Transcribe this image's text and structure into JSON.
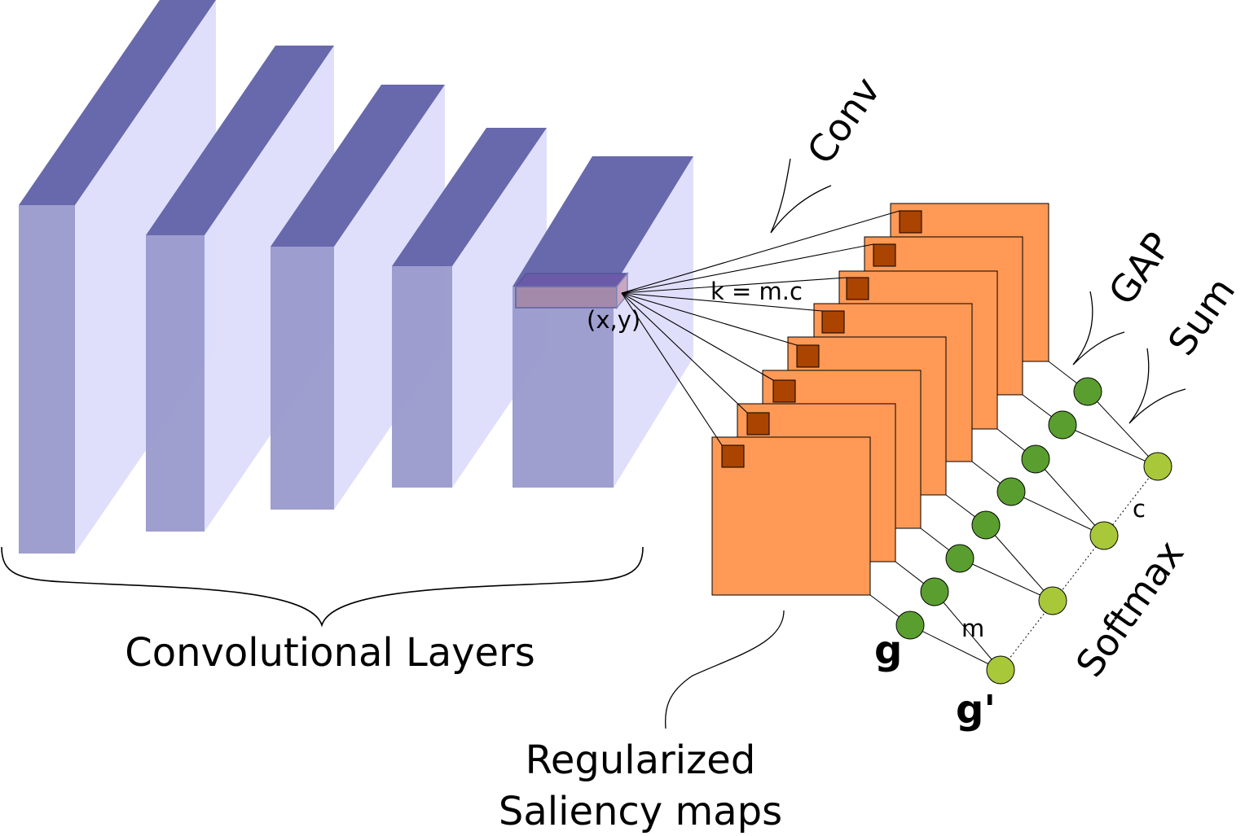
{
  "labels": {
    "convolutional_layers": "Convolutional Layers",
    "saliency_line1": "Regularized",
    "saliency_line2": "Saliency maps",
    "conv": "Conv",
    "gap": "GAP",
    "sum": "Sum",
    "softmax": "Softmax",
    "kernel": "k = m.c",
    "position": "(x,y)",
    "g": "g",
    "g_prime": "g'",
    "m": "m",
    "c": "c"
  },
  "colors": {
    "layer_front": "#9999cc",
    "layer_side": "#dcdcfc",
    "layer_top": "#6868ac",
    "map_fill": "#ff9955",
    "map_patch": "#aa4400",
    "node_gap": "#5a9e2f",
    "node_sum": "#a8c83a"
  }
}
